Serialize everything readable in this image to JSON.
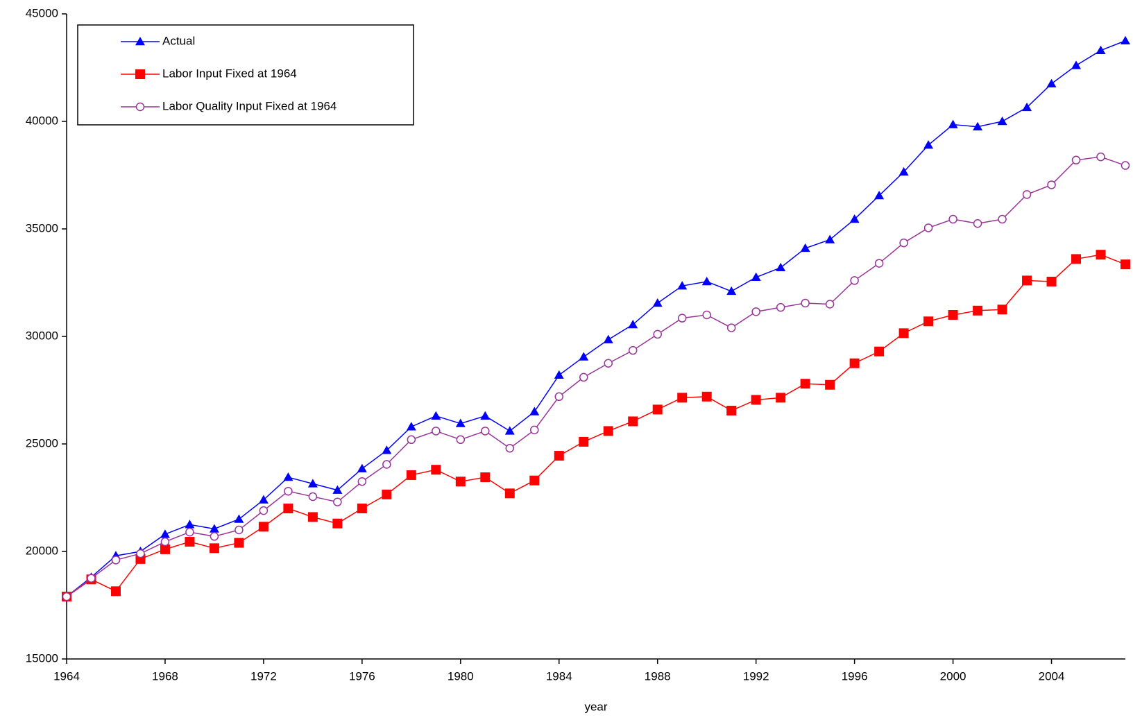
{
  "chart_data": {
    "type": "line",
    "x_label": "year",
    "x": [
      1964,
      1965,
      1966,
      1967,
      1968,
      1969,
      1970,
      1971,
      1972,
      1973,
      1974,
      1975,
      1976,
      1977,
      1978,
      1979,
      1980,
      1981,
      1982,
      1983,
      1984,
      1985,
      1986,
      1987,
      1988,
      1989,
      1990,
      1991,
      1992,
      1993,
      1994,
      1995,
      1996,
      1997,
      1998,
      1999,
      2000,
      2001,
      2002,
      2003,
      2004,
      2005,
      2006,
      2007
    ],
    "xlim": [
      1964,
      2007
    ],
    "xticks": [
      1964,
      1968,
      1972,
      1976,
      1980,
      1984,
      1988,
      1992,
      1996,
      2000,
      2004
    ],
    "ylim": [
      15000,
      45000
    ],
    "yticks": [
      15000,
      20000,
      25000,
      30000,
      35000,
      40000,
      45000
    ],
    "grid": false,
    "legend": "upper-left",
    "series": [
      {
        "name": "Actual",
        "color": "#0000ff",
        "marker": "triangle",
        "values": [
          17900,
          18800,
          19800,
          20000,
          20800,
          21250,
          21050,
          21500,
          22400,
          23450,
          23150,
          22850,
          23850,
          24700,
          25800,
          26300,
          25950,
          26300,
          25600,
          26500,
          28200,
          29050,
          29850,
          30550,
          31550,
          32350,
          32550,
          32100,
          32750,
          33200,
          34100,
          34500,
          35450,
          36550,
          37650,
          38900,
          39850,
          39750,
          40000,
          40650,
          41750,
          42600,
          43300,
          43750
        ]
      },
      {
        "name": "Labor Input Fixed at 1964",
        "color": "#ff0000",
        "marker": "square",
        "values": [
          17900,
          18700,
          18150,
          19650,
          20100,
          20450,
          20150,
          20400,
          21150,
          22000,
          21600,
          21300,
          22000,
          22650,
          23550,
          23800,
          23250,
          23450,
          22700,
          23300,
          24450,
          25100,
          25600,
          26050,
          26600,
          27150,
          27200,
          26550,
          27050,
          27150,
          27800,
          27750,
          28750,
          29300,
          30150,
          30700,
          31000,
          31200,
          31250,
          32600,
          32550,
          33600,
          33800,
          33350
        ]
      },
      {
        "name": "Labor Quality Input Fixed at 1964",
        "color": "#993399",
        "marker": "circle",
        "values": [
          17900,
          18750,
          19600,
          19900,
          20450,
          20900,
          20700,
          21000,
          21900,
          22800,
          22550,
          22300,
          23250,
          24050,
          25200,
          25600,
          25200,
          25600,
          24800,
          25650,
          27200,
          28100,
          28750,
          29350,
          30100,
          30850,
          31000,
          30400,
          31150,
          31350,
          31550,
          31500,
          32600,
          33400,
          34350,
          35050,
          35450,
          35250,
          35450,
          36600,
          37050,
          38200,
          38350,
          37950
        ]
      }
    ]
  }
}
